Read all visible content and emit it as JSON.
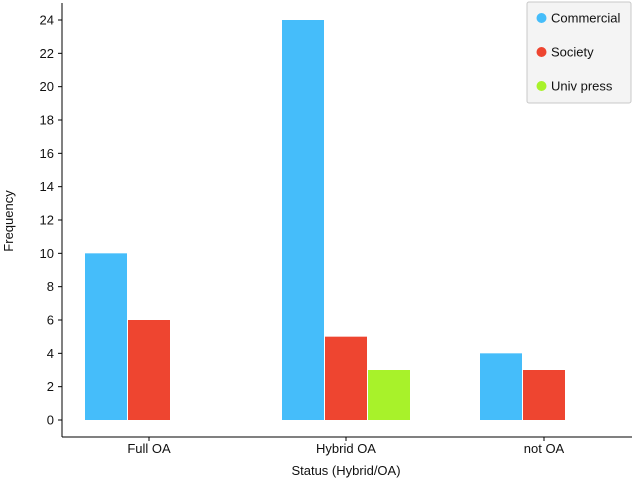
{
  "chart_data": {
    "type": "bar",
    "title": "",
    "xlabel": "Status (Hybrid/OA)",
    "ylabel": "Frequency",
    "categories": [
      "Full OA",
      "Hybrid OA",
      "not OA"
    ],
    "series": [
      {
        "name": "Commercial",
        "color": "#45BDFA",
        "values": [
          10,
          24,
          4
        ]
      },
      {
        "name": "Society",
        "color": "#EE4530",
        "values": [
          6,
          5,
          3
        ]
      },
      {
        "name": "Univ press",
        "color": "#A8F22A",
        "values": [
          0,
          3,
          0
        ]
      }
    ],
    "ylim": [
      0,
      24
    ],
    "yticks": [
      0,
      2,
      4,
      6,
      8,
      10,
      12,
      14,
      16,
      18,
      20,
      22,
      24
    ],
    "grid": false,
    "legend": {
      "position": "top-right"
    }
  }
}
